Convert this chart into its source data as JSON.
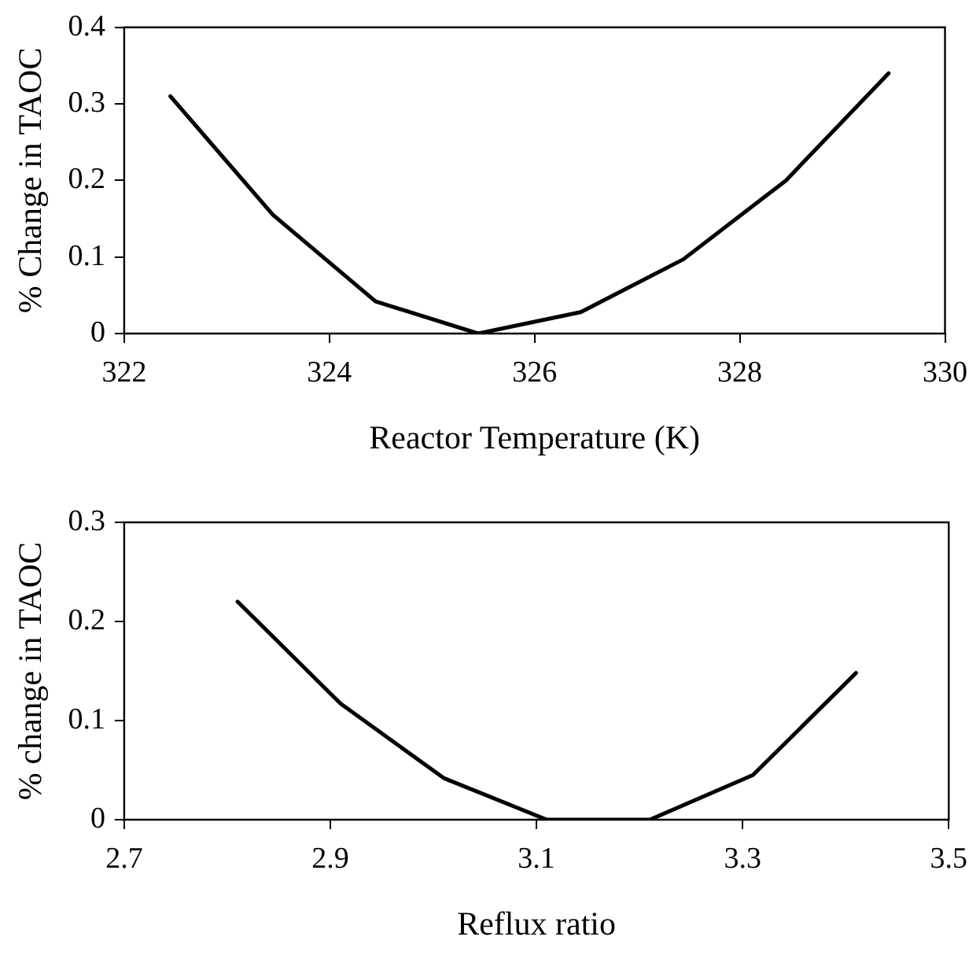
{
  "chart_data": [
    {
      "type": "line",
      "xlabel": "Reactor Temperature (K)",
      "ylabel": "% Change in TAOC",
      "xlim": [
        322,
        330
      ],
      "xticks": [
        322,
        324,
        326,
        328,
        330
      ],
      "ylim": [
        0,
        0.4
      ],
      "yticks": [
        0,
        0.1,
        0.2,
        0.3,
        0.4
      ],
      "grid": false,
      "legend": false,
      "marker": "none",
      "line_style": "solid",
      "series": [
        {
          "color": "#000000",
          "x": [
            322.45,
            323.45,
            324.45,
            325.45,
            326.45,
            327.45,
            328.45,
            329.45
          ],
          "values": [
            0.31,
            0.155,
            0.042,
            0,
            0.028,
            0.097,
            0.2,
            0.34
          ]
        }
      ]
    },
    {
      "type": "line",
      "xlabel": "Reflux ratio",
      "ylabel": "% change in TAOC",
      "xlim": [
        2.7,
        3.5
      ],
      "xticks": [
        2.7,
        2.9,
        3.1,
        3.3,
        3.5
      ],
      "ylim": [
        0,
        0.3
      ],
      "yticks": [
        0,
        0.1,
        0.2,
        0.3
      ],
      "grid": false,
      "legend": false,
      "marker": "none",
      "line_style": "solid",
      "series": [
        {
          "color": "#000000",
          "x": [
            2.81,
            2.91,
            3.01,
            3.11,
            3.21,
            3.31,
            3.41
          ],
          "values": [
            0.22,
            0.117,
            0.042,
            0,
            0,
            0.045,
            0.148
          ]
        }
      ]
    }
  ]
}
